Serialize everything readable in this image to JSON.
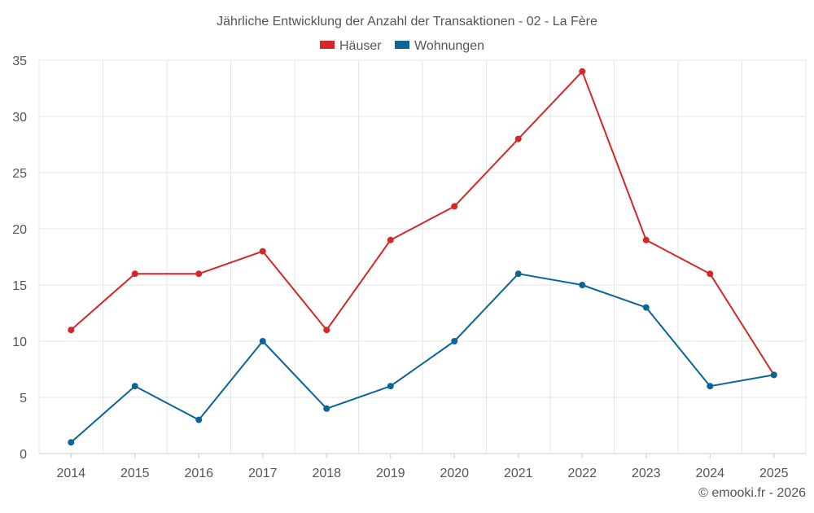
{
  "chart_data": {
    "type": "line",
    "title": "Jährliche Entwicklung der Anzahl der Transaktionen - 02 - La Fère",
    "categories": [
      "2014",
      "2015",
      "2016",
      "2017",
      "2018",
      "2019",
      "2020",
      "2021",
      "2022",
      "2023",
      "2024",
      "2025"
    ],
    "series": [
      {
        "name": "Häuser",
        "color": "#d62728",
        "values": [
          11,
          16,
          16,
          18,
          11,
          19,
          22,
          28,
          34,
          19,
          16,
          7
        ]
      },
      {
        "name": "Wohnungen",
        "color": "#0a6699",
        "values": [
          1,
          6,
          3,
          10,
          4,
          6,
          10,
          16,
          15,
          13,
          6,
          7
        ]
      }
    ],
    "y_ticks": [
      "0",
      "5",
      "10",
      "15",
      "20",
      "25",
      "30",
      "35"
    ],
    "ylim": [
      0,
      35
    ],
    "xlabel": "",
    "ylabel": "",
    "grid": true,
    "legend_position": "top-center"
  },
  "credit": "© emooki.fr - 2026",
  "colors": {
    "text": "#555555",
    "grid": "#e6e6e6",
    "axis": "#cccccc"
  }
}
